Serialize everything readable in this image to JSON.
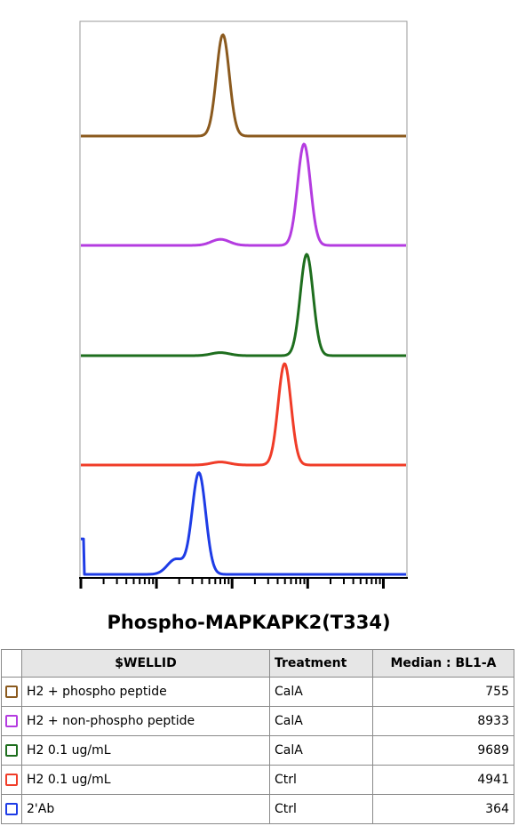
{
  "chart_data": {
    "type": "area",
    "xlabel": "Phospho-MAPKAPK2(T334)",
    "ylabel": "",
    "x_scale": "log",
    "grid": false,
    "series": [
      {
        "name": "H2 + phospho peptide",
        "color": "#8B5A1E",
        "peaks": [
          {
            "center": 755,
            "height": 1.0,
            "width": 0.085
          }
        ]
      },
      {
        "name": "H2 + non-phospho peptide",
        "color": "#B43CE0",
        "peaks": [
          {
            "center": 8933,
            "height": 1.0,
            "width": 0.085
          },
          {
            "center": 700,
            "height": 0.06,
            "width": 0.12
          }
        ]
      },
      {
        "name": "H2 0.1 ug/mL",
        "color": "#1E6E1E",
        "peaks": [
          {
            "center": 9689,
            "height": 1.0,
            "width": 0.085
          },
          {
            "center": 700,
            "height": 0.03,
            "width": 0.12
          }
        ]
      },
      {
        "name": "H2 0.1 ug/mL",
        "color": "#F03C28",
        "peaks": [
          {
            "center": 4941,
            "height": 1.0,
            "width": 0.085
          },
          {
            "center": 700,
            "height": 0.03,
            "width": 0.12
          }
        ]
      },
      {
        "name": "2'Ab",
        "color": "#1E3CE6",
        "peaks": [
          {
            "center": 364,
            "height": 1.0,
            "width": 0.09
          },
          {
            "center": 180,
            "height": 0.15,
            "width": 0.11
          }
        ],
        "edge_spike": 0.35
      }
    ]
  },
  "table": {
    "headers": [
      "$WELLID",
      "Treatment",
      "Median : BL1-A"
    ],
    "rows": [
      {
        "wellid": "H2 + phospho peptide",
        "treatment": "CalA",
        "median": "755",
        "color": "#8B5A1E"
      },
      {
        "wellid": "H2 + non-phospho peptide",
        "treatment": "CalA",
        "median": "8933",
        "color": "#B43CE0"
      },
      {
        "wellid": "H2 0.1 ug/mL",
        "treatment": "CalA",
        "median": "9689",
        "color": "#1E6E1E"
      },
      {
        "wellid": "H2 0.1 ug/mL",
        "treatment": "Ctrl",
        "median": "4941",
        "color": "#F03C28"
      },
      {
        "wellid": "2'Ab",
        "treatment": "Ctrl",
        "median": "364",
        "color": "#1E3CE6"
      }
    ]
  }
}
